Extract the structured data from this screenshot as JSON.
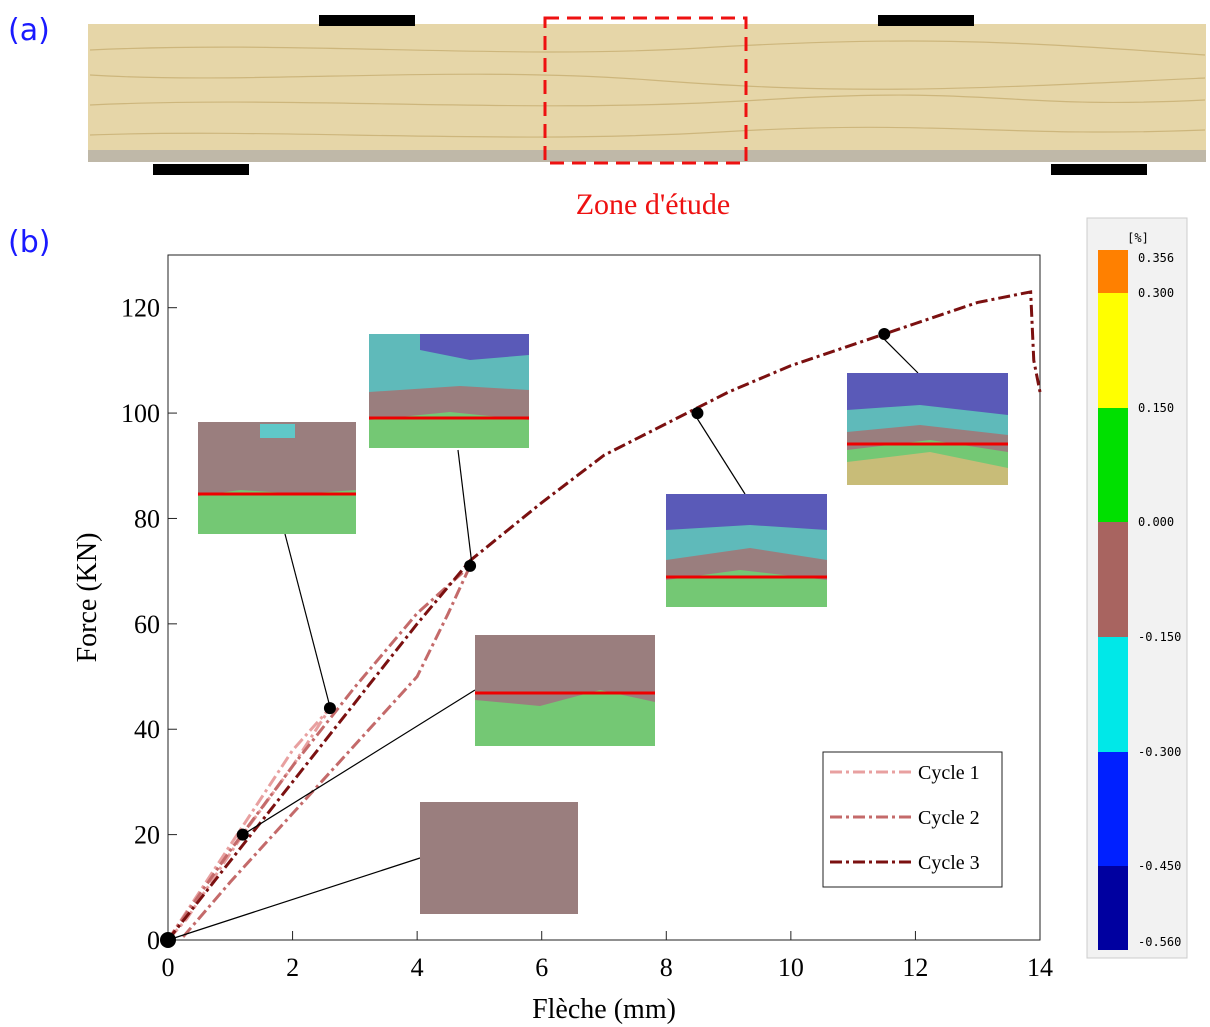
{
  "panels": {
    "a": "(a)",
    "b": "(b)"
  },
  "photo": {
    "annotation": "Zone d'étude"
  },
  "chart_data": {
    "type": "line",
    "xlabel": "Flèche (mm)",
    "ylabel": "Force (KN)",
    "xlim": [
      0,
      14
    ],
    "ylim": [
      0,
      130
    ],
    "xticks": [
      0,
      2,
      4,
      6,
      8,
      10,
      12,
      14
    ],
    "yticks": [
      0,
      20,
      40,
      60,
      80,
      100,
      120
    ],
    "legend": "lower right",
    "series": [
      {
        "name": "Cycle 1",
        "color": "#e8a0a0",
        "x": [
          0,
          1,
          2,
          2.6,
          2,
          1.2,
          0.3,
          0
        ],
        "values": [
          0,
          18,
          36,
          44,
          33,
          20,
          4,
          0
        ]
      },
      {
        "name": "Cycle 2",
        "color": "#c46a6a",
        "x": [
          0,
          1,
          2,
          3,
          4,
          4.85,
          4.5,
          4,
          3,
          2,
          1,
          0.2
        ],
        "values": [
          0,
          17,
          33,
          48,
          62,
          71,
          62,
          50,
          37,
          24,
          11,
          0
        ]
      },
      {
        "name": "Cycle 3",
        "color": "#7b1010",
        "x": [
          0,
          1,
          2,
          3,
          4,
          4.85,
          6,
          7,
          8,
          9,
          10,
          11,
          12,
          13,
          13.85,
          13.9,
          14
        ],
        "values": [
          0,
          15,
          30,
          45,
          60,
          72,
          83,
          92,
          98,
          104,
          109,
          113,
          117,
          121,
          123,
          110,
          104
        ]
      }
    ],
    "markers": {
      "x": [
        0,
        1.2,
        2.6,
        4.85,
        8.5,
        11.5
      ],
      "y": [
        0,
        20,
        44,
        71,
        100,
        115
      ]
    }
  },
  "colorbar": {
    "title": "[%]",
    "labels": [
      "0.356",
      "0.300",
      "0.150",
      "0.000",
      "-0.150",
      "-0.300",
      "-0.450",
      "-0.560"
    ],
    "colors": [
      "#ff8000",
      "#ffff00",
      "#00e000",
      "#a86460",
      "#00e8e8",
      "#0020ff",
      "#0000a0"
    ]
  }
}
